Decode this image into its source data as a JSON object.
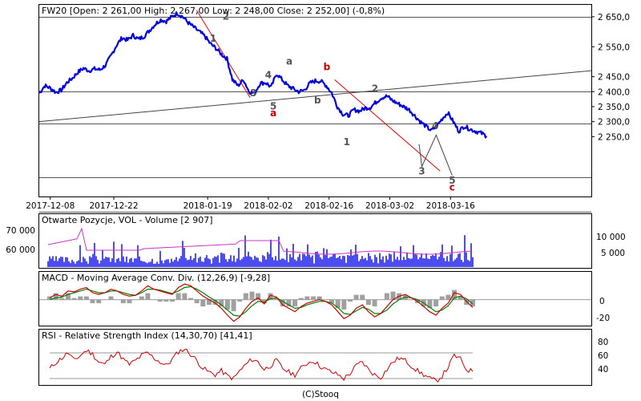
{
  "footer": "(C)Stooq",
  "colors": {
    "price": "#0000dd",
    "volume": "#0000ee",
    "open_interest": "#cc33cc",
    "macd": "#cc0000",
    "signal": "#008000",
    "histogram": "#a0a0a0",
    "rsi": "#cc0000",
    "wave_gray": "#555555",
    "wave_red": "#cc0000",
    "trend_red": "#ee0000"
  },
  "chart_data": [
    {
      "id": "price",
      "type": "line",
      "title": "FW20 [Open: 2 261,00  High: 2 267,00  Low: 2 248,00  Close: 2 252,00] (-0,8%)",
      "x_ticks": [
        "2017-12-08",
        "2017-12-22",
        "2018-01-19",
        "2018-02-02",
        "2018-02-16",
        "2018-03-02",
        "2018-03-16"
      ],
      "y_ticks": [
        "2 650,0",
        "2 550,0",
        "2 450,0",
        "2 400,0",
        "2 350,0",
        "2 300,0",
        "2 250,0"
      ],
      "ylim": [
        2050,
        2690
      ],
      "x_range": [
        0,
        100
      ],
      "series": [
        {
          "x": [
            0,
            1,
            2,
            3,
            4,
            5,
            6,
            7,
            8,
            9,
            10,
            11,
            12,
            13,
            14,
            15,
            16,
            17,
            18,
            19,
            20,
            21,
            22,
            23,
            24,
            25,
            26,
            27,
            28,
            29,
            30,
            31,
            32,
            33,
            34,
            35,
            36,
            37,
            38,
            39,
            40,
            41,
            42,
            43,
            44,
            45,
            46,
            47,
            48,
            49,
            50,
            51,
            52,
            53,
            54,
            55,
            56,
            57,
            58,
            59,
            60,
            61,
            62,
            63,
            64,
            65,
            66,
            67,
            68,
            69,
            70,
            71,
            72,
            73,
            74,
            75,
            76,
            77,
            78,
            79,
            80,
            81
          ],
          "y": [
            2395,
            2420,
            2412,
            2398,
            2405,
            2430,
            2445,
            2465,
            2478,
            2470,
            2476,
            2473,
            2488,
            2520,
            2555,
            2580,
            2572,
            2588,
            2575,
            2585,
            2605,
            2625,
            2640,
            2635,
            2650,
            2662,
            2650,
            2630,
            2615,
            2600,
            2585,
            2560,
            2545,
            2525,
            2510,
            2440,
            2420,
            2440,
            2400,
            2395,
            2428,
            2430,
            2415,
            2460,
            2440,
            2420,
            2410,
            2400,
            2405,
            2428,
            2436,
            2435,
            2420,
            2395,
            2350,
            2325,
            2320,
            2340,
            2335,
            2345,
            2348,
            2365,
            2380,
            2385,
            2370,
            2360,
            2350,
            2340,
            2320,
            2300,
            2285,
            2270,
            2285,
            2310,
            2330,
            2300,
            2268,
            2285,
            2275,
            2268,
            2262,
            2252
          ]
        }
      ],
      "annotations": [
        {
          "text": "1",
          "x": 31.5,
          "y": 2567,
          "color": "gray"
        },
        {
          "text": "2",
          "x": 33.8,
          "y": 2640,
          "color": "gray"
        },
        {
          "text": "3",
          "x": 38.8,
          "y": 2385,
          "color": "gray"
        },
        {
          "text": "4",
          "x": 41.5,
          "y": 2445,
          "color": "gray"
        },
        {
          "text": "5",
          "x": 42.4,
          "y": 2340,
          "color": "gray"
        },
        {
          "text": "a",
          "x": 42.4,
          "y": 2318,
          "color": "red"
        },
        {
          "text": "a",
          "x": 45.3,
          "y": 2490,
          "color": "gray"
        },
        {
          "text": "b",
          "x": 50.4,
          "y": 2360,
          "color": "gray"
        },
        {
          "text": "b",
          "x": 52.1,
          "y": 2472,
          "color": "red"
        },
        {
          "text": "1",
          "x": 55.7,
          "y": 2222,
          "color": "gray"
        },
        {
          "text": "2",
          "x": 60.8,
          "y": 2400,
          "color": "gray"
        },
        {
          "text": "3",
          "x": 69.3,
          "y": 2123,
          "color": "gray"
        },
        {
          "text": "4",
          "x": 71.7,
          "y": 2275,
          "color": "gray"
        },
        {
          "text": "5",
          "x": 74.8,
          "y": 2093,
          "color": "gray"
        },
        {
          "text": "c",
          "x": 74.8,
          "y": 2070,
          "color": "red"
        }
      ]
    },
    {
      "id": "volume",
      "type": "bar",
      "title": "Otwarte Pozycje, VOL - Volume [2 907]",
      "left_ticks": [
        "70 000",
        "60 000"
      ],
      "right_ticks": [
        "10 000",
        "5 000"
      ]
    },
    {
      "id": "macd",
      "type": "line",
      "title": "MACD - Moving Average Conv. Div. (12,26,9) [-9,28]",
      "right_ticks": [
        "0",
        "-20"
      ],
      "ylim": [
        -30,
        20
      ],
      "series": [
        {
          "name": "MACD",
          "values": [
            2,
            6,
            4,
            10,
            9,
            12,
            14,
            8,
            6,
            8,
            12,
            10,
            6,
            4,
            5,
            10,
            16,
            12,
            10,
            8,
            6,
            14,
            18,
            16,
            10,
            4,
            0,
            -4,
            -10,
            -18,
            -25,
            -20,
            -10,
            -2,
            2,
            -5,
            5,
            3,
            -6,
            -10,
            -14,
            -8,
            -4,
            -2,
            0,
            -2,
            -6,
            -14,
            -22,
            -18,
            -10,
            -6,
            -14,
            -20,
            -16,
            -8,
            0,
            4,
            6,
            2,
            -2,
            -8,
            -14,
            -18,
            -10,
            -4,
            8,
            6,
            -2,
            -9
          ]
        },
        {
          "name": "Signal",
          "values": [
            0,
            2,
            3,
            6,
            8,
            10,
            12,
            10,
            8,
            8,
            10,
            10,
            8,
            6,
            5,
            8,
            12,
            12,
            11,
            9,
            7,
            10,
            14,
            15,
            12,
            8,
            3,
            -1,
            -6,
            -12,
            -18,
            -19,
            -14,
            -7,
            -2,
            -3,
            1,
            2,
            -2,
            -6,
            -10,
            -9,
            -6,
            -4,
            -2,
            -2,
            -4,
            -9,
            -16,
            -17,
            -13,
            -9,
            -11,
            -16,
            -16,
            -12,
            -5,
            0,
            3,
            2,
            0,
            -4,
            -9,
            -14,
            -12,
            -7,
            2,
            4,
            1,
            -5
          ]
        }
      ]
    },
    {
      "id": "rsi",
      "type": "line",
      "title": "RSI - Relative Strength Index (14,30,70) [41,41]",
      "right_ticks": [
        "80",
        "60",
        "40"
      ],
      "ylim": [
        20,
        90
      ],
      "series": [
        {
          "name": "RSI",
          "values": [
            45,
            55,
            62,
            70,
            58,
            66,
            74,
            68,
            56,
            52,
            64,
            72,
            60,
            52,
            58,
            66,
            70,
            62,
            56,
            50,
            60,
            72,
            76,
            68,
            58,
            46,
            40,
            36,
            42,
            34,
            30,
            42,
            52,
            60,
            56,
            44,
            50,
            58,
            46,
            40,
            36,
            46,
            54,
            58,
            50,
            44,
            40,
            36,
            30,
            38,
            50,
            56,
            44,
            36,
            32,
            44,
            56,
            62,
            58,
            50,
            42,
            36,
            30,
            26,
            34,
            48,
            66,
            60,
            44,
            41
          ]
        }
      ]
    }
  ]
}
